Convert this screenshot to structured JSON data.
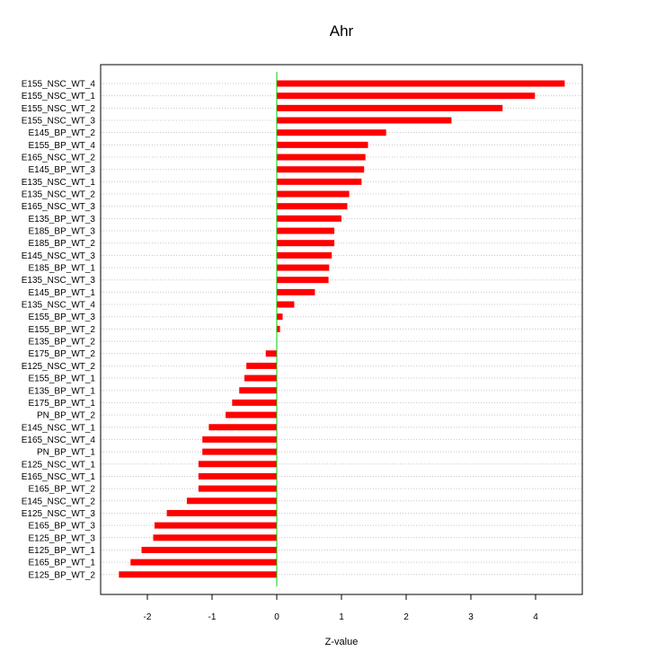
{
  "chart_data": {
    "type": "bar",
    "orientation": "horizontal",
    "title": "Ahr",
    "xlabel": "Z-value",
    "ylabel": "",
    "xlim": [
      -2.6,
      4.75
    ],
    "xticks": [
      -2,
      -1,
      0,
      1,
      2,
      3,
      4
    ],
    "grid": "horizontal dotted",
    "legend": "none",
    "bar_color": "#ff0000",
    "zero_line_color": "#00cc00",
    "categories": [
      "E155_NSC_WT_4",
      "E155_NSC_WT_1",
      "E155_NSC_WT_2",
      "E155_NSC_WT_3",
      "E145_BP_WT_2",
      "E155_BP_WT_4",
      "E165_NSC_WT_2",
      "E145_BP_WT_3",
      "E135_NSC_WT_1",
      "E135_NSC_WT_2",
      "E165_NSC_WT_3",
      "E135_BP_WT_3",
      "E185_BP_WT_3",
      "E185_BP_WT_2",
      "E145_NSC_WT_3",
      "E185_BP_WT_1",
      "E135_NSC_WT_3",
      "E145_BP_WT_1",
      "E135_NSC_WT_4",
      "E155_BP_WT_3",
      "E155_BP_WT_2",
      "E135_BP_WT_2",
      "E175_BP_WT_2",
      "E125_NSC_WT_2",
      "E155_BP_WT_1",
      "E135_BP_WT_1",
      "E175_BP_WT_1",
      "PN_BP_WT_2",
      "E145_NSC_WT_1",
      "E165_NSC_WT_4",
      "PN_BP_WT_1",
      "E125_NSC_WT_1",
      "E165_NSC_WT_1",
      "E165_BP_WT_2",
      "E145_NSC_WT_2",
      "E125_NSC_WT_3",
      "E165_BP_WT_3",
      "E125_BP_WT_3",
      "E125_BP_WT_1",
      "E165_BP_WT_1",
      "E125_BP_WT_2"
    ],
    "values": [
      4.45,
      3.99,
      3.49,
      2.7,
      1.69,
      1.41,
      1.37,
      1.35,
      1.31,
      1.12,
      1.09,
      1.0,
      0.89,
      0.89,
      0.85,
      0.81,
      0.8,
      0.59,
      0.27,
      0.09,
      0.05,
      0.0,
      -0.17,
      -0.47,
      -0.5,
      -0.58,
      -0.69,
      -0.79,
      -1.05,
      -1.15,
      -1.15,
      -1.21,
      -1.21,
      -1.21,
      -1.39,
      -1.7,
      -1.89,
      -1.91,
      -2.09,
      -2.26,
      -2.44
    ]
  }
}
